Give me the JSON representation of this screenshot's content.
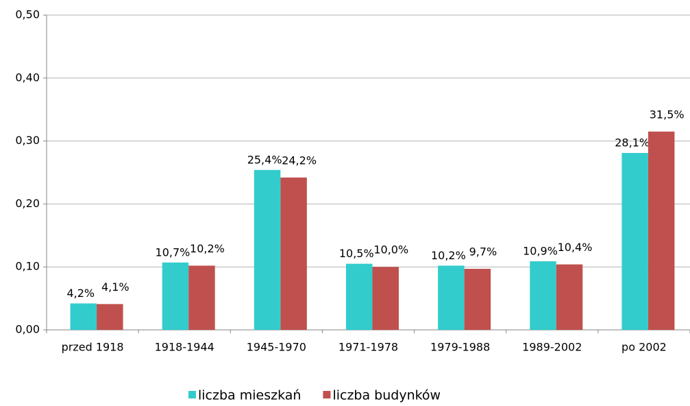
{
  "chart_data": {
    "type": "bar",
    "categories": [
      "przed 1918",
      "1918-1944",
      "1945-1970",
      "1971-1978",
      "1979-1988",
      "1989-2002",
      "po 2002"
    ],
    "series": [
      {
        "name": "liczba mieszkań",
        "color": "#33cccc",
        "values": [
          0.042,
          0.107,
          0.254,
          0.105,
          0.102,
          0.109,
          0.281
        ],
        "value_labels": [
          "4,2%",
          "10,7%",
          "25,4%",
          "10,5%",
          "10,2%",
          "10,9%",
          "28,1%"
        ]
      },
      {
        "name": "liczba budynków",
        "color": "#c0504d",
        "values": [
          0.041,
          0.102,
          0.242,
          0.1,
          0.097,
          0.104,
          0.315
        ],
        "value_labels": [
          "4,1%",
          "10,2%",
          "24,2%",
          "10,0%",
          "9,7%",
          "10,4%",
          "31,5%"
        ]
      }
    ],
    "ylim": [
      0,
      0.5
    ],
    "yticks": [
      {
        "value": 0,
        "label": "0,00"
      },
      {
        "value": 0.1,
        "label": "0,10"
      },
      {
        "value": 0.2,
        "label": "0,20"
      },
      {
        "value": 0.3,
        "label": "0,30"
      },
      {
        "value": 0.4,
        "label": "0,40"
      },
      {
        "value": 0.5,
        "label": "0,50"
      }
    ],
    "grid": true,
    "legend": "bottom"
  }
}
